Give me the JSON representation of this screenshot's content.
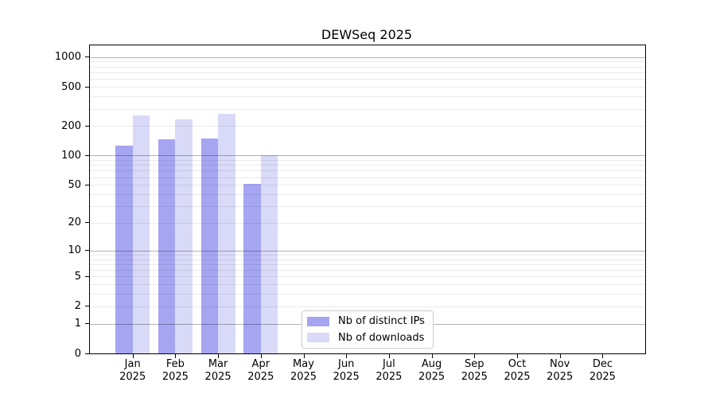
{
  "title": "DEWSeq 2025",
  "chart_data": {
    "type": "bar",
    "title": "DEWSeq 2025",
    "scale": "log1p",
    "grid": true,
    "legend_position": "bottom-center",
    "ylim": [
      0,
      1000
    ],
    "y_ticks": [
      0,
      1,
      2,
      5,
      10,
      20,
      50,
      100,
      200,
      500,
      1000
    ],
    "categories": [
      "Jan",
      "Feb",
      "Mar",
      "Apr",
      "May",
      "Jun",
      "Jul",
      "Aug",
      "Sep",
      "Oct",
      "Nov",
      "Dec"
    ],
    "year_label": "2025",
    "series": [
      {
        "name": "Nb of distinct IPs",
        "color": "#a5a5f2",
        "values": [
          125,
          147,
          150,
          51,
          null,
          null,
          null,
          null,
          null,
          null,
          null,
          null
        ]
      },
      {
        "name": "Nb of downloads",
        "color": "#d9d9f8",
        "values": [
          258,
          232,
          268,
          100,
          null,
          null,
          null,
          null,
          null,
          null,
          null,
          null
        ]
      }
    ]
  },
  "legend": {
    "item1": "Nb of distinct IPs",
    "item2": "Nb of downloads"
  }
}
